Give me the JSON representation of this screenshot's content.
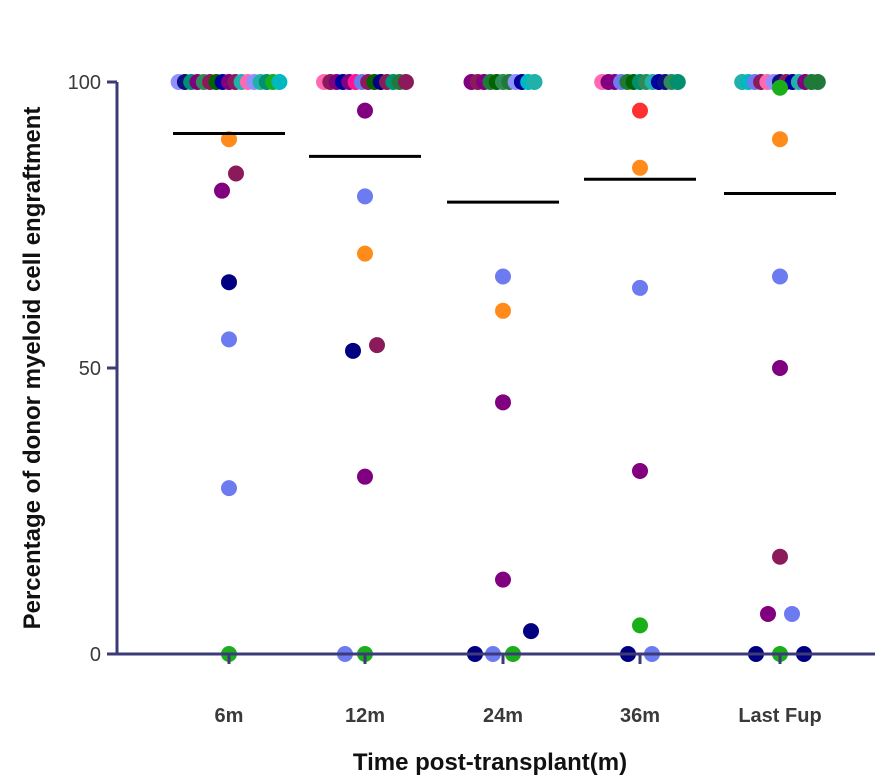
{
  "chart_data": {
    "type": "scatter",
    "title": "",
    "xlabel": "Time post-transplant(m)",
    "ylabel": "Percentage of donor myeloid cell engraftment",
    "ylim": [
      0,
      100
    ],
    "yticks": [
      0,
      50,
      100
    ],
    "categories": [
      "6m",
      "12m",
      "24m",
      "36m",
      "Last Fup"
    ],
    "grid": false,
    "legend": "none",
    "colors": {
      "axis": "#3d3a78",
      "mean_line": "#000000",
      "palette": [
        "#800080",
        "#009070",
        "#000080",
        "#8b1a5a",
        "#2e8b57",
        "#6c7bf0",
        "#20b2aa",
        "#ff1493",
        "#5070e0",
        "#ff8c1a",
        "#6a0dad",
        "#1f7a3a",
        "#00b8c0",
        "#0000a0",
        "#ff3030",
        "#ff69b4",
        "#006400",
        "#9090ff",
        "#1aaf1a",
        "#101080"
      ]
    },
    "means": [
      91,
      87,
      79,
      83,
      80.5
    ],
    "series": [
      {
        "category": "6m",
        "points": [
          {
            "y": 90,
            "color": "#ff8c1a",
            "offset": 0
          },
          {
            "y": 84,
            "color": "#8b1a5a",
            "offset": 0.35
          },
          {
            "y": 81,
            "color": "#800080",
            "offset": -0.35
          },
          {
            "y": 65,
            "color": "#000080",
            "offset": 0
          },
          {
            "y": 55,
            "color": "#6c7bf0",
            "offset": 0
          },
          {
            "y": 29,
            "color": "#6c7bf0",
            "offset": 0
          },
          {
            "y": 0,
            "color": "#1aaf1a",
            "offset": 0
          }
        ]
      },
      {
        "category": "12m",
        "points": [
          {
            "y": 95,
            "color": "#800080",
            "offset": 0
          },
          {
            "y": 80,
            "color": "#6c7bf0",
            "offset": 0
          },
          {
            "y": 70,
            "color": "#ff8c1a",
            "offset": 0
          },
          {
            "y": 54,
            "color": "#8b1a5a",
            "offset": 0.6
          },
          {
            "y": 53,
            "color": "#000080",
            "offset": -0.6
          },
          {
            "y": 31,
            "color": "#800080",
            "offset": 0
          },
          {
            "y": 0,
            "color": "#6c7bf0",
            "offset": -1
          },
          {
            "y": 0,
            "color": "#1aaf1a",
            "offset": 0
          }
        ]
      },
      {
        "category": "24m",
        "points": [
          {
            "y": 66,
            "color": "#6c7bf0",
            "offset": 0
          },
          {
            "y": 60,
            "color": "#ff8c1a",
            "offset": 0
          },
          {
            "y": 44,
            "color": "#800080",
            "offset": 0
          },
          {
            "y": 13,
            "color": "#800080",
            "offset": 0
          },
          {
            "y": 4,
            "color": "#000080",
            "offset": 1.4
          },
          {
            "y": 0,
            "color": "#000080",
            "offset": -1.4
          },
          {
            "y": 0,
            "color": "#6c7bf0",
            "offset": -0.5
          },
          {
            "y": 0,
            "color": "#1aaf1a",
            "offset": 0.5
          }
        ]
      },
      {
        "category": "36m",
        "points": [
          {
            "y": 95,
            "color": "#ff3030",
            "offset": 0
          },
          {
            "y": 85,
            "color": "#ff8c1a",
            "offset": 0
          },
          {
            "y": 64,
            "color": "#6c7bf0",
            "offset": 0
          },
          {
            "y": 32,
            "color": "#800080",
            "offset": 0
          },
          {
            "y": 5,
            "color": "#1aaf1a",
            "offset": 0
          },
          {
            "y": 0,
            "color": "#000080",
            "offset": -0.6
          },
          {
            "y": 0,
            "color": "#6c7bf0",
            "offset": 0.6
          }
        ]
      },
      {
        "category": "Last Fup",
        "points": [
          {
            "y": 99,
            "color": "#1aaf1a",
            "offset": 0
          },
          {
            "y": 90,
            "color": "#ff8c1a",
            "offset": 0
          },
          {
            "y": 66,
            "color": "#6c7bf0",
            "offset": 0
          },
          {
            "y": 50,
            "color": "#800080",
            "offset": 0
          },
          {
            "y": 17,
            "color": "#8b1a5a",
            "offset": 0
          },
          {
            "y": 7,
            "color": "#800080",
            "offset": -0.6
          },
          {
            "y": 7,
            "color": "#6c7bf0",
            "offset": 0.6
          },
          {
            "y": 0,
            "color": "#000080",
            "offset": -1.2
          },
          {
            "y": 0,
            "color": "#1aaf1a",
            "offset": 0
          },
          {
            "y": 0,
            "color": "#000080",
            "offset": 1.2
          }
        ]
      }
    ],
    "top_cluster": [
      {
        "category": "6m",
        "colors": [
          "#9090ff",
          "#101080",
          "#009070",
          "#800080",
          "#2e8b57",
          "#8b1a5a",
          "#006400",
          "#0000a0",
          "#800080",
          "#8b1a5a",
          "#20b2aa",
          "#ff69b4",
          "#9090ff",
          "#20b2aa",
          "#009070",
          "#1aaf1a",
          "#00b8c0"
        ]
      },
      {
        "category": "12m",
        "colors": [
          "#ff69b4",
          "#8b1a5a",
          "#800080",
          "#0000a0",
          "#800080",
          "#ff1493",
          "#6c7bf0",
          "#8b1a5a",
          "#006400",
          "#000080",
          "#8b1a5a",
          "#009070",
          "#1f7a3a",
          "#8b1a5a"
        ]
      },
      {
        "category": "24m",
        "colors": [
          "#800080",
          "#8b1a5a",
          "#800080",
          "#1f7a3a",
          "#006400",
          "#2e8b57",
          "#1f7a3a",
          "#9090ff",
          "#0000a0",
          "#00b8c0",
          "#20b2aa"
        ]
      },
      {
        "category": "36m",
        "colors": [
          "#ff69b4",
          "#800080",
          "#800080",
          "#6c7bf0",
          "#1f7a3a",
          "#006400",
          "#009070",
          "#2e8b57",
          "#20b2aa",
          "#0000a0",
          "#101080",
          "#2e8b57",
          "#009070"
        ]
      },
      {
        "category": "Last Fup",
        "colors": [
          "#20b2aa",
          "#00b8c0",
          "#6c7bf0",
          "#8b1a5a",
          "#ff69b4",
          "#9090ff",
          "#101080",
          "#8b1a5a",
          "#0000a0",
          "#20b2aa",
          "#800080",
          "#1f7a3a",
          "#1f7a3a"
        ]
      }
    ]
  }
}
